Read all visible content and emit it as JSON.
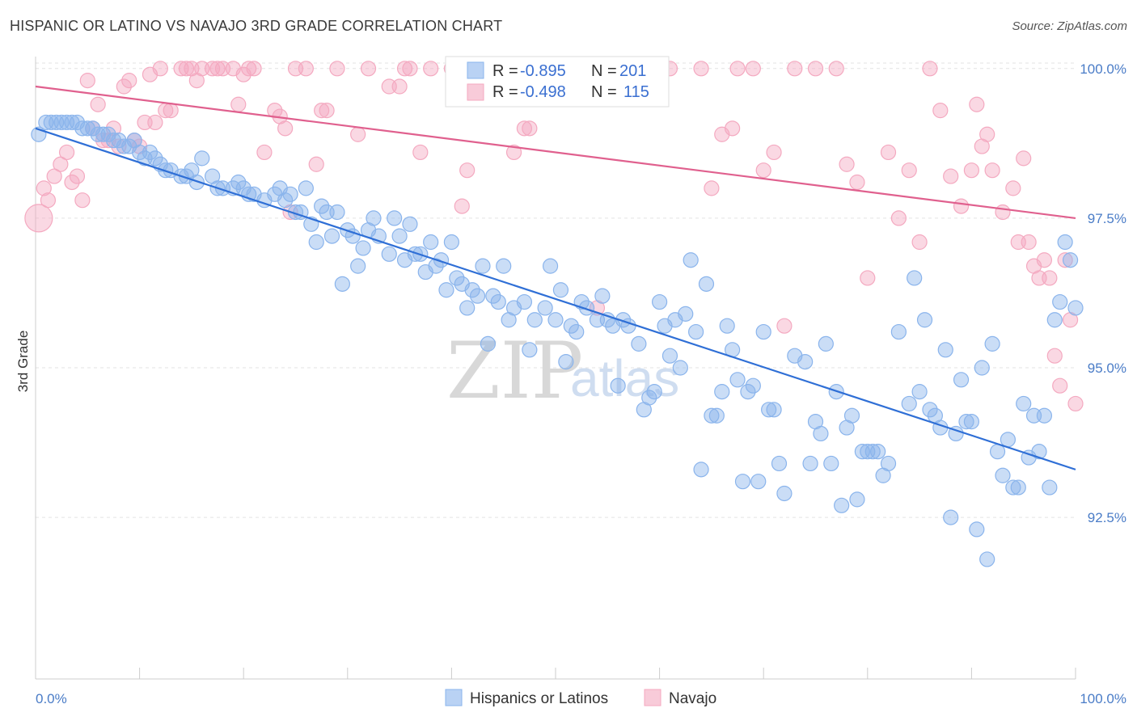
{
  "title": "HISPANIC OR LATINO VS NAVAJO 3RD GRADE CORRELATION CHART",
  "source": "Source: ZipAtlas.com",
  "watermark": {
    "zip": "ZIP",
    "atlas": "atlas"
  },
  "legend_box": {
    "rows": [
      {
        "r_label": "R =",
        "r_value": "-0.895",
        "n_label": "N =",
        "n_value": "201"
      },
      {
        "r_label": "R =",
        "r_value": "-0.498",
        "n_label": "N =",
        "n_value": "115"
      }
    ]
  },
  "chart_data": {
    "type": "scatter",
    "title": "HISPANIC OR LATINO VS NAVAJO 3RD GRADE CORRELATION CHART",
    "xlabel": "",
    "ylabel": "3rd Grade",
    "xlim": [
      0,
      100
    ],
    "ylim": [
      89.8,
      100.2
    ],
    "y_ticks": [
      92.5,
      95.0,
      97.5,
      100.0
    ],
    "y_tick_labels": [
      "92.5%",
      "95.0%",
      "97.5%",
      "100.0%"
    ],
    "x_tick_labels": [
      "0.0%",
      "100.0%"
    ],
    "grid": true,
    "legend": "top-center",
    "series": [
      {
        "name": "Hispanics or Latinos",
        "color": "#8ab4ec",
        "line_color": "#2f6fd6",
        "trend": {
          "x": [
            0,
            100
          ],
          "y": [
            99.0,
            93.3
          ]
        },
        "r": -0.895,
        "n": 201,
        "points": [
          [
            0.3,
            98.9
          ],
          [
            1,
            99.1
          ],
          [
            1.5,
            99.1
          ],
          [
            2,
            99.1
          ],
          [
            2.5,
            99.1
          ],
          [
            3,
            99.1
          ],
          [
            3.5,
            99.1
          ],
          [
            4,
            99.1
          ],
          [
            4.5,
            99.0
          ],
          [
            5,
            99.0
          ],
          [
            5.5,
            99.0
          ],
          [
            6,
            98.9
          ],
          [
            6.5,
            98.9
          ],
          [
            7,
            98.9
          ],
          [
            7.5,
            98.8
          ],
          [
            8,
            98.8
          ],
          [
            8.5,
            98.7
          ],
          [
            9,
            98.7
          ],
          [
            9.5,
            98.8
          ],
          [
            10,
            98.6
          ],
          [
            10.5,
            98.5
          ],
          [
            11,
            98.6
          ],
          [
            11.5,
            98.5
          ],
          [
            12,
            98.4
          ],
          [
            12.5,
            98.3
          ],
          [
            13,
            98.3
          ],
          [
            14,
            98.2
          ],
          [
            14.5,
            98.2
          ],
          [
            15,
            98.3
          ],
          [
            15.5,
            98.1
          ],
          [
            16,
            98.5
          ],
          [
            17,
            98.2
          ],
          [
            17.5,
            98.0
          ],
          [
            18,
            98.0
          ],
          [
            19,
            98.0
          ],
          [
            19.5,
            98.1
          ],
          [
            20,
            98.0
          ],
          [
            20.5,
            97.9
          ],
          [
            21,
            97.9
          ],
          [
            22,
            97.8
          ],
          [
            23,
            97.9
          ],
          [
            23.5,
            98.0
          ],
          [
            24,
            97.8
          ],
          [
            24.5,
            97.9
          ],
          [
            25,
            97.6
          ],
          [
            25.5,
            97.6
          ],
          [
            26,
            98.0
          ],
          [
            26.5,
            97.4
          ],
          [
            27,
            97.1
          ],
          [
            27.5,
            97.7
          ],
          [
            28,
            97.6
          ],
          [
            28.5,
            97.2
          ],
          [
            29,
            97.6
          ],
          [
            29.5,
            96.4
          ],
          [
            30,
            97.3
          ],
          [
            30.5,
            97.2
          ],
          [
            31,
            96.7
          ],
          [
            31.5,
            97.0
          ],
          [
            32,
            97.3
          ],
          [
            32.5,
            97.5
          ],
          [
            33,
            97.2
          ],
          [
            34,
            96.9
          ],
          [
            34.5,
            97.5
          ],
          [
            35,
            97.2
          ],
          [
            35.5,
            96.8
          ],
          [
            36,
            97.4
          ],
          [
            36.5,
            96.9
          ],
          [
            37,
            96.9
          ],
          [
            37.5,
            96.6
          ],
          [
            38,
            97.1
          ],
          [
            38.5,
            96.7
          ],
          [
            39,
            96.8
          ],
          [
            39.5,
            96.3
          ],
          [
            40,
            97.1
          ],
          [
            40.5,
            96.5
          ],
          [
            41,
            96.4
          ],
          [
            41.5,
            96.0
          ],
          [
            42,
            96.3
          ],
          [
            42.5,
            96.2
          ],
          [
            43,
            96.7
          ],
          [
            43.5,
            95.4
          ],
          [
            44,
            96.2
          ],
          [
            44.5,
            96.1
          ],
          [
            45,
            96.7
          ],
          [
            45.5,
            95.8
          ],
          [
            46,
            96.0
          ],
          [
            47,
            96.1
          ],
          [
            47.5,
            95.3
          ],
          [
            48,
            95.8
          ],
          [
            49,
            96.0
          ],
          [
            49.5,
            96.7
          ],
          [
            50,
            95.8
          ],
          [
            50.5,
            96.3
          ],
          [
            51,
            95.1
          ],
          [
            51.5,
            95.7
          ],
          [
            52,
            95.6
          ],
          [
            52.5,
            96.1
          ],
          [
            53,
            96.0
          ],
          [
            54,
            95.8
          ],
          [
            54.5,
            96.2
          ],
          [
            55,
            95.8
          ],
          [
            55.5,
            95.7
          ],
          [
            56,
            94.7
          ],
          [
            56.5,
            95.8
          ],
          [
            57,
            95.7
          ],
          [
            58,
            95.4
          ],
          [
            58.5,
            94.3
          ],
          [
            59,
            94.5
          ],
          [
            59.5,
            94.6
          ],
          [
            60,
            96.1
          ],
          [
            60.5,
            95.7
          ],
          [
            61,
            95.2
          ],
          [
            61.5,
            95.8
          ],
          [
            62,
            95.0
          ],
          [
            62.5,
            95.9
          ],
          [
            63,
            96.8
          ],
          [
            63.5,
            95.6
          ],
          [
            64,
            93.3
          ],
          [
            64.5,
            96.4
          ],
          [
            65,
            94.2
          ],
          [
            65.5,
            94.2
          ],
          [
            66,
            94.6
          ],
          [
            66.5,
            95.7
          ],
          [
            67,
            95.3
          ],
          [
            67.5,
            94.8
          ],
          [
            68,
            93.1
          ],
          [
            68.5,
            94.6
          ],
          [
            69,
            94.7
          ],
          [
            69.5,
            93.1
          ],
          [
            70,
            95.6
          ],
          [
            70.5,
            94.3
          ],
          [
            71,
            94.3
          ],
          [
            71.5,
            93.4
          ],
          [
            72,
            92.9
          ],
          [
            73,
            95.2
          ],
          [
            74,
            95.1
          ],
          [
            74.5,
            93.4
          ],
          [
            75,
            94.1
          ],
          [
            75.5,
            93.9
          ],
          [
            76,
            95.4
          ],
          [
            76.5,
            93.4
          ],
          [
            77,
            94.6
          ],
          [
            77.5,
            92.7
          ],
          [
            78,
            94.0
          ],
          [
            78.5,
            94.2
          ],
          [
            79,
            92.8
          ],
          [
            79.5,
            93.6
          ],
          [
            80,
            93.6
          ],
          [
            80.5,
            93.6
          ],
          [
            81,
            93.6
          ],
          [
            81.5,
            93.2
          ],
          [
            82,
            93.4
          ],
          [
            83,
            95.6
          ],
          [
            84,
            94.4
          ],
          [
            84.5,
            96.5
          ],
          [
            85,
            94.6
          ],
          [
            85.5,
            95.8
          ],
          [
            86,
            94.3
          ],
          [
            86.5,
            94.2
          ],
          [
            87,
            94.0
          ],
          [
            87.5,
            95.3
          ],
          [
            88,
            92.5
          ],
          [
            88.5,
            93.9
          ],
          [
            89,
            94.8
          ],
          [
            89.5,
            94.1
          ],
          [
            90,
            94.1
          ],
          [
            90.5,
            92.3
          ],
          [
            91,
            95.0
          ],
          [
            91.5,
            91.8
          ],
          [
            92,
            95.4
          ],
          [
            92.5,
            93.6
          ],
          [
            93,
            93.2
          ],
          [
            93.5,
            93.8
          ],
          [
            94,
            93.0
          ],
          [
            94.5,
            93.0
          ],
          [
            95,
            94.4
          ],
          [
            95.5,
            93.5
          ],
          [
            96,
            94.2
          ],
          [
            96.5,
            93.6
          ],
          [
            97,
            94.2
          ],
          [
            97.5,
            93.0
          ],
          [
            98,
            95.8
          ],
          [
            98.5,
            96.1
          ],
          [
            99,
            97.1
          ],
          [
            99.5,
            96.8
          ],
          [
            100,
            96.0
          ],
          [
            100.5,
            94.4
          ]
        ]
      },
      {
        "name": "Navajo",
        "color": "#f4a9c0",
        "line_color": "#e0608e",
        "trend": {
          "x": [
            0,
            100
          ],
          "y": [
            99.7,
            97.5
          ]
        },
        "r": -0.498,
        "n": 115,
        "points": [
          [
            0.3,
            97.5
          ],
          [
            0.8,
            98.0
          ],
          [
            1.2,
            97.8
          ],
          [
            1.8,
            98.2
          ],
          [
            2.4,
            98.4
          ],
          [
            3,
            98.6
          ],
          [
            3.5,
            98.1
          ],
          [
            4,
            98.2
          ],
          [
            4.5,
            97.8
          ],
          [
            5,
            99.8
          ],
          [
            5.5,
            99.0
          ],
          [
            6,
            99.4
          ],
          [
            6.5,
            98.8
          ],
          [
            7,
            98.8
          ],
          [
            7.5,
            99.0
          ],
          [
            8,
            98.7
          ],
          [
            8.5,
            99.7
          ],
          [
            9,
            99.8
          ],
          [
            9.5,
            98.8
          ],
          [
            10,
            98.7
          ],
          [
            10.5,
            99.1
          ],
          [
            11,
            99.9
          ],
          [
            11.5,
            99.1
          ],
          [
            12,
            100.0
          ],
          [
            12.5,
            99.3
          ],
          [
            13,
            99.3
          ],
          [
            14,
            100.0
          ],
          [
            14.5,
            100.0
          ],
          [
            15,
            100.0
          ],
          [
            15.5,
            99.8
          ],
          [
            16,
            100.0
          ],
          [
            17,
            100.0
          ],
          [
            17.5,
            100.0
          ],
          [
            18,
            100.0
          ],
          [
            19,
            100.0
          ],
          [
            19.5,
            99.4
          ],
          [
            20,
            99.9
          ],
          [
            20.5,
            100.0
          ],
          [
            21,
            100.0
          ],
          [
            22,
            98.6
          ],
          [
            23,
            99.3
          ],
          [
            23.5,
            99.2
          ],
          [
            24,
            99.0
          ],
          [
            24.5,
            97.6
          ],
          [
            25,
            100.0
          ],
          [
            26,
            100.0
          ],
          [
            27,
            98.4
          ],
          [
            27.5,
            99.3
          ],
          [
            28,
            99.3
          ],
          [
            29,
            100.0
          ],
          [
            31,
            98.9
          ],
          [
            32,
            100.0
          ],
          [
            34,
            99.7
          ],
          [
            35,
            99.7
          ],
          [
            35.5,
            100.0
          ],
          [
            36,
            100.0
          ],
          [
            37,
            98.6
          ],
          [
            38,
            100.0
          ],
          [
            40,
            100.0
          ],
          [
            41,
            97.7
          ],
          [
            41.5,
            98.3
          ],
          [
            42,
            100.0
          ],
          [
            44,
            100.0
          ],
          [
            46,
            98.6
          ],
          [
            47,
            99.0
          ],
          [
            47.5,
            99.0
          ],
          [
            51,
            100.0
          ],
          [
            54,
            96.0
          ],
          [
            56,
            100.0
          ],
          [
            58,
            100.0
          ],
          [
            60,
            100.0
          ],
          [
            61,
            100.0
          ],
          [
            64,
            100.0
          ],
          [
            65,
            98.0
          ],
          [
            66,
            98.9
          ],
          [
            67,
            99.0
          ],
          [
            67.5,
            100.0
          ],
          [
            69,
            100.0
          ],
          [
            70,
            98.3
          ],
          [
            71,
            98.6
          ],
          [
            72,
            95.7
          ],
          [
            73,
            100.0
          ],
          [
            75,
            100.0
          ],
          [
            77,
            100.0
          ],
          [
            78,
            98.4
          ],
          [
            79,
            98.1
          ],
          [
            80,
            96.5
          ],
          [
            82,
            98.6
          ],
          [
            83,
            97.5
          ],
          [
            84,
            98.3
          ],
          [
            85,
            97.1
          ],
          [
            86,
            100.0
          ],
          [
            87,
            99.3
          ],
          [
            88,
            98.2
          ],
          [
            89,
            97.7
          ],
          [
            90,
            98.3
          ],
          [
            90.5,
            99.4
          ],
          [
            91,
            98.7
          ],
          [
            91.5,
            98.9
          ],
          [
            92,
            98.3
          ],
          [
            93,
            97.6
          ],
          [
            94,
            98.0
          ],
          [
            94.5,
            97.1
          ],
          [
            95,
            98.5
          ],
          [
            95.5,
            97.1
          ],
          [
            96,
            96.7
          ],
          [
            96.5,
            96.5
          ],
          [
            97,
            96.8
          ],
          [
            97.5,
            96.5
          ],
          [
            98,
            95.2
          ],
          [
            98.5,
            94.7
          ],
          [
            99,
            96.8
          ],
          [
            99.5,
            95.8
          ],
          [
            100,
            94.4
          ]
        ]
      }
    ]
  },
  "bottom_legend": [
    {
      "label": "Hispanics or Latinos",
      "color": "#8ab4ec"
    },
    {
      "label": "Navajo",
      "color": "#f4a9c0"
    }
  ]
}
